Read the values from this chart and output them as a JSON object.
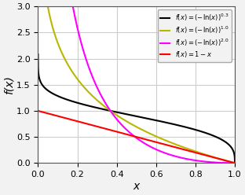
{
  "xlabel": "x",
  "ylabel": "f(x)",
  "xlim": [
    0.0,
    1.0
  ],
  "ylim": [
    0.0,
    3.0
  ],
  "xticks": [
    0.0,
    0.2,
    0.4,
    0.6,
    0.8,
    1.0
  ],
  "yticks": [
    0.0,
    0.5,
    1.0,
    1.5,
    2.0,
    2.5,
    3.0
  ],
  "gammas": [
    0.3,
    1.0,
    2.0
  ],
  "curve_colors": [
    "black",
    "#b8b800",
    "magenta",
    "red"
  ],
  "curve_lws": [
    1.5,
    1.5,
    1.5,
    1.5
  ],
  "legend_texts": [
    "$f(x) = (-\\ln(x))^{0.3}$",
    "$f(x) = (-\\ln(x))^{1.0}$",
    "$f(x) = (-\\ln(x))^{2.0}$",
    "$f(x) = 1-x$"
  ],
  "grid_color": "#cccccc",
  "bg_color": "#f2f2f2",
  "axes_bg": "#ffffff",
  "xlabel_fontsize": 10,
  "ylabel_fontsize": 10,
  "tick_fontsize": 8,
  "legend_fontsize": 6.0
}
